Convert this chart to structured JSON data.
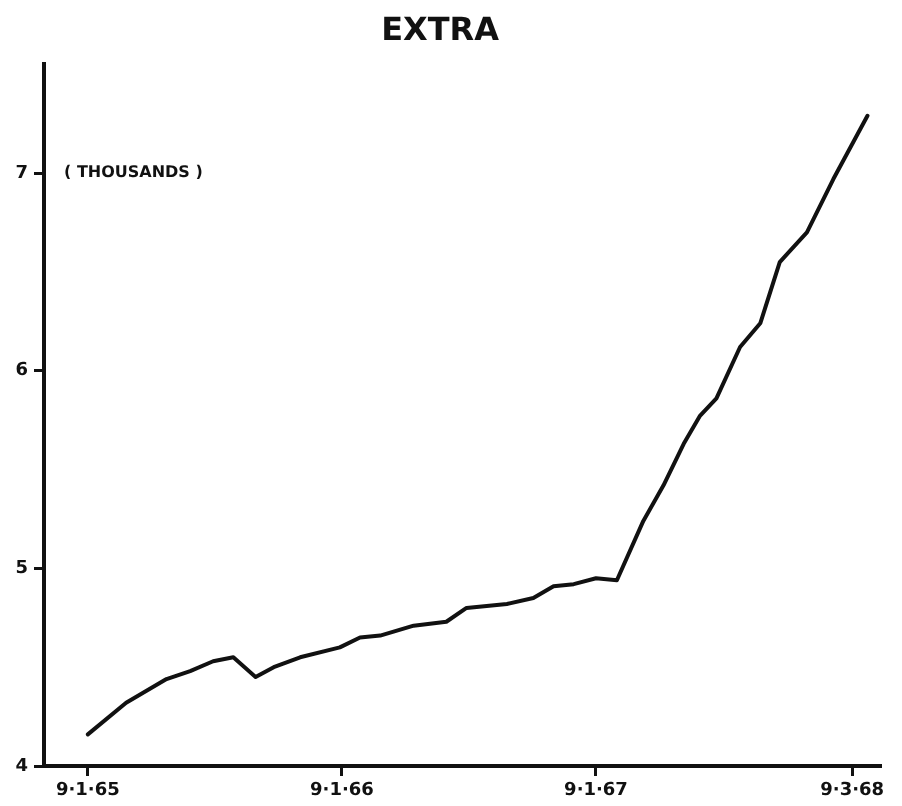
{
  "chart_data": {
    "type": "line",
    "title": "EXTRA",
    "ylabel": "( THOUSANDS )",
    "x": [
      "1965-09-01",
      "1965-10-26",
      "1965-12-23",
      "1966-01-26",
      "1966-02-28",
      "1966-03-29",
      "1966-04-30",
      "1966-05-26",
      "1966-07-03",
      "1966-08-29",
      "1966-09-27",
      "1966-10-26",
      "1966-12-13",
      "1967-01-29",
      "1967-02-27",
      "1967-04-26",
      "1967-06-03",
      "1967-07-02",
      "1967-07-31",
      "1967-09-01",
      "1967-10-01",
      "1967-11-08",
      "1967-12-07",
      "1968-01-05",
      "1968-01-28",
      "1968-02-21",
      "1968-03-26",
      "1968-04-24",
      "1968-05-22",
      "1968-06-30",
      "1968-08-07",
      "1968-09-25"
    ],
    "values": [
      4.16,
      4.32,
      4.44,
      4.48,
      4.53,
      4.55,
      4.45,
      4.5,
      4.55,
      4.6,
      4.65,
      4.66,
      4.71,
      4.73,
      4.8,
      4.82,
      4.85,
      4.91,
      4.92,
      4.95,
      4.94,
      5.24,
      5.42,
      5.63,
      5.77,
      5.86,
      6.12,
      6.24,
      6.55,
      6.7,
      6.97,
      7.29
    ],
    "color": "#111111",
    "xlim": [
      "1965-06-30",
      "1968-10-13"
    ],
    "ylim": [
      4,
      7.55
    ],
    "xticks": [
      {
        "value": "1965-09-01",
        "label": "9·1·65"
      },
      {
        "value": "1966-09-01",
        "label": "9·1·66"
      },
      {
        "value": "1967-09-01",
        "label": "9·1·67"
      },
      {
        "value": "1968-09-03",
        "label": "9·3·68"
      }
    ],
    "yticks": [
      4,
      5,
      6,
      7
    ],
    "grid": false,
    "legend": false,
    "marker": "none",
    "line_style": "solid"
  }
}
